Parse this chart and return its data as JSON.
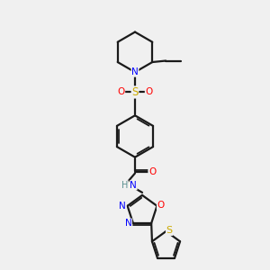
{
  "background_color": "#f0f0f0",
  "bond_color": "#1a1a1a",
  "N_color": "#0000ff",
  "O_color": "#ff0000",
  "S_color": "#ccaa00",
  "H_color": "#5a9090",
  "figsize": [
    3.0,
    3.0
  ],
  "dpi": 100,
  "xlim": [
    0,
    10
  ],
  "ylim": [
    0,
    10
  ]
}
